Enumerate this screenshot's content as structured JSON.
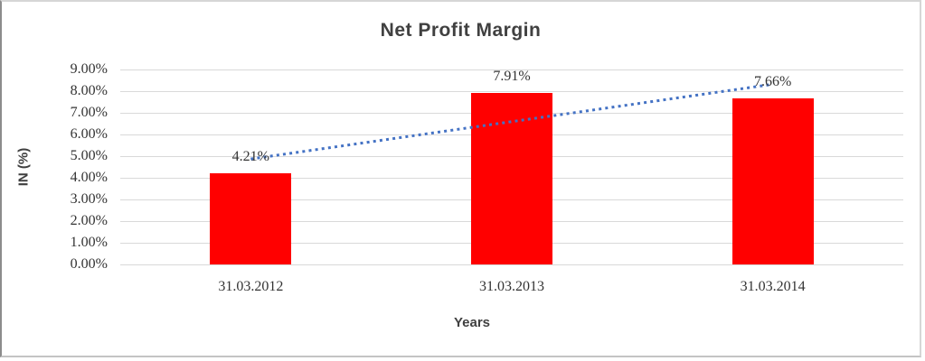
{
  "chart_data": {
    "type": "bar",
    "title": "Net Profit Margin",
    "xlabel": "Years",
    "ylabel": "IN (%)",
    "categories": [
      "31.03.2012",
      "31.03.2013",
      "31.03.2014"
    ],
    "values": [
      4.21,
      7.91,
      7.66
    ],
    "data_labels": [
      "4.21%",
      "7.91%",
      "7.66%"
    ],
    "ytick_labels": [
      "0.00%",
      "1.00%",
      "2.00%",
      "3.00%",
      "4.00%",
      "5.00%",
      "6.00%",
      "7.00%",
      "8.00%",
      "9.00%"
    ],
    "ylim": [
      0,
      9
    ],
    "grid": true,
    "legend": "none",
    "trendline": {
      "type": "linear",
      "style": "dotted"
    },
    "colors": {
      "bar": "#FF0000",
      "trendline": "#4472C4",
      "gridline": "#D9D9D9",
      "title_text": "#404040",
      "tick_text": "#333333"
    }
  }
}
